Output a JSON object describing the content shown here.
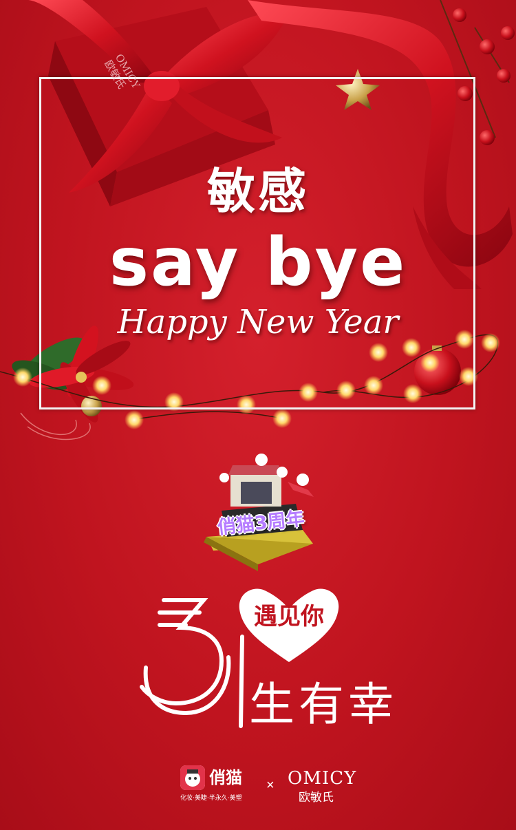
{
  "headline": {
    "line1": "敏感",
    "line2": "say bye",
    "line3": "Happy New Year"
  },
  "anniversary_badge": {
    "label": "俏猫3周年"
  },
  "slogan": {
    "numeral": "3",
    "heart_text": "遇见你",
    "line2": "生有幸"
  },
  "footer": {
    "brand1_name": "俏猫",
    "brand1_tagline": "化妆·美睫·半永久·美塑",
    "separator": "×",
    "brand2_name": "OMICY",
    "brand2_cn": "欧敏氏"
  },
  "gift_box_brand": {
    "name": "OMICY",
    "cn": "欧敏氏"
  },
  "colors": {
    "background": "#c0141f",
    "ribbon": "#d8182a",
    "frame": "#f4f4f4",
    "light": "#ffd86b",
    "text": "#ffffff"
  }
}
